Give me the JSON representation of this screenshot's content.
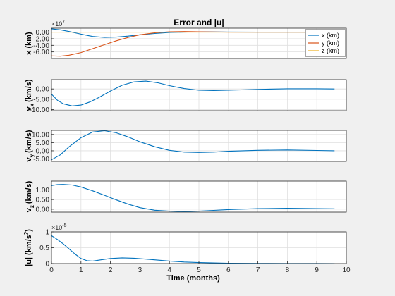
{
  "chart_data": [
    {
      "type": "line",
      "id": "pos",
      "title": "Error and |u|",
      "ylabel": "x (km)",
      "exponent_label": "×10",
      "exponent_power": "7",
      "ylim": [
        -8,
        1.2
      ],
      "yticks": [
        0,
        -2,
        -4,
        -6
      ],
      "ytick_labels": [
        "0.00",
        "-2.00",
        "-4.00",
        "-6.00"
      ],
      "xlim": [
        0,
        10
      ],
      "grid": true,
      "legend_position": "top-right",
      "series": [
        {
          "name": "x (km)",
          "color": "#0072BD",
          "x": [
            0,
            0.3,
            0.6,
            1.0,
            1.4,
            1.8,
            2.2,
            2.6,
            3.0,
            3.5,
            4.0,
            4.5,
            5.0,
            6.0,
            7.0,
            8.0,
            9.6
          ],
          "y": [
            1.0,
            0.7,
            0.2,
            -0.6,
            -1.3,
            -1.6,
            -1.5,
            -1.2,
            -0.8,
            -0.4,
            -0.1,
            0.0,
            0.1,
            0.05,
            0.0,
            0.0,
            0.0
          ]
        },
        {
          "name": "y (km)",
          "color": "#D95319",
          "x": [
            0,
            0.3,
            0.6,
            1.0,
            1.4,
            1.8,
            2.2,
            2.6,
            3.0,
            3.5,
            4.0,
            4.5,
            5.0,
            6.0,
            7.0,
            8.0,
            9.6
          ],
          "y": [
            -7.2,
            -7.3,
            -7.0,
            -6.2,
            -5.0,
            -3.8,
            -2.6,
            -1.6,
            -0.8,
            -0.2,
            0.1,
            0.2,
            0.1,
            0.0,
            0.0,
            0.0,
            0.0
          ]
        },
        {
          "name": "z (km)",
          "color": "#EDB120",
          "x": [
            0,
            9.6
          ],
          "y": [
            0.0,
            0.0
          ]
        }
      ]
    },
    {
      "type": "line",
      "id": "vx",
      "ylabel_main": "v",
      "ylabel_sub": "x",
      "ylabel_unit": "(km/s)",
      "ylim": [
        -10.5,
        4.5
      ],
      "yticks": [
        0,
        -5,
        -10
      ],
      "ytick_labels": [
        "0.00",
        "-5.00",
        "-10.00"
      ],
      "xlim": [
        0,
        10
      ],
      "grid": true,
      "series": [
        {
          "color": "#0072BD",
          "x": [
            0,
            0.2,
            0.4,
            0.7,
            1.0,
            1.3,
            1.6,
            2.0,
            2.4,
            2.8,
            3.2,
            3.6,
            4.0,
            4.5,
            5.0,
            5.5,
            6.0,
            7.0,
            8.0,
            9.0,
            9.6
          ],
          "y": [
            -2.5,
            -5.5,
            -7.2,
            -8.2,
            -7.8,
            -6.3,
            -4.2,
            -1.0,
            1.8,
            3.4,
            3.8,
            3.0,
            1.6,
            0.2,
            -0.6,
            -0.8,
            -0.6,
            -0.2,
            0.1,
            0.1,
            0.0
          ]
        }
      ]
    },
    {
      "type": "line",
      "id": "vy",
      "ylabel_main": "v",
      "ylabel_sub": "y",
      "ylabel_unit": "(km/s)",
      "ylim": [
        -6.5,
        12.5
      ],
      "yticks": [
        10,
        5,
        0,
        -5
      ],
      "ytick_labels": [
        "10.00",
        "5.00",
        "0.00",
        "-5.00"
      ],
      "xlim": [
        0,
        10
      ],
      "grid": true,
      "series": [
        {
          "color": "#0072BD",
          "x": [
            0,
            0.3,
            0.6,
            1.0,
            1.4,
            1.8,
            2.2,
            2.6,
            3.0,
            3.5,
            4.0,
            4.5,
            5.0,
            5.5,
            6.0,
            7.0,
            8.0,
            9.0,
            9.6
          ],
          "y": [
            -5.5,
            -2.5,
            2.5,
            8.0,
            11.5,
            12.3,
            11.0,
            8.5,
            5.5,
            2.5,
            0.3,
            -0.8,
            -1.0,
            -0.8,
            -0.3,
            0.3,
            0.5,
            0.2,
            0.0
          ]
        }
      ]
    },
    {
      "type": "line",
      "id": "vz",
      "ylabel_main": "v",
      "ylabel_sub": "z",
      "ylabel_unit": "(km/s)",
      "ylim": [
        -0.15,
        1.45
      ],
      "yticks": [
        1.0,
        0.5,
        0.0
      ],
      "ytick_labels": [
        "1.00",
        "0.50",
        "0.00"
      ],
      "xlim": [
        0,
        10
      ],
      "grid": true,
      "series": [
        {
          "color": "#0072BD",
          "x": [
            0,
            0.2,
            0.4,
            0.7,
            1.0,
            1.4,
            1.8,
            2.2,
            2.6,
            3.0,
            3.5,
            4.0,
            4.5,
            5.0,
            5.5,
            6.0,
            7.0,
            8.0,
            9.0,
            9.6
          ],
          "y": [
            1.22,
            1.27,
            1.28,
            1.25,
            1.15,
            0.95,
            0.72,
            0.48,
            0.26,
            0.08,
            -0.05,
            -0.1,
            -0.12,
            -0.1,
            -0.06,
            -0.02,
            0.03,
            0.05,
            0.03,
            0.02
          ]
        }
      ]
    },
    {
      "type": "line",
      "id": "u",
      "ylabel_main": "|u| (km/s",
      "ylabel_sup": "2",
      "ylabel_end": ")",
      "exponent_label": "×10",
      "exponent_power": "-5",
      "ylim": [
        0,
        1
      ],
      "yticks": [
        1,
        0.5,
        0
      ],
      "ytick_labels": [
        "1",
        "0.5",
        "0"
      ],
      "xlim": [
        0,
        10
      ],
      "xticks": [
        0,
        1,
        2,
        3,
        4,
        5,
        6,
        7,
        8,
        9,
        10
      ],
      "xtick_labels": [
        "0",
        "1",
        "2",
        "3",
        "4",
        "5",
        "6",
        "7",
        "8",
        "9",
        "10"
      ],
      "xlabel": "Time (months)",
      "grid": true,
      "series": [
        {
          "color": "#0072BD",
          "x": [
            0,
            0.2,
            0.4,
            0.6,
            0.8,
            1.0,
            1.2,
            1.4,
            1.7,
            2.0,
            2.4,
            2.8,
            3.2,
            3.6,
            4.0,
            4.5,
            5.0,
            5.5,
            6.0,
            7.0,
            8.0,
            9.0,
            9.6
          ],
          "y": [
            0.88,
            0.76,
            0.62,
            0.46,
            0.3,
            0.16,
            0.09,
            0.08,
            0.12,
            0.16,
            0.18,
            0.17,
            0.14,
            0.11,
            0.08,
            0.05,
            0.03,
            0.02,
            0.01,
            0.005,
            0.003,
            0.002,
            0.001
          ]
        }
      ]
    }
  ]
}
